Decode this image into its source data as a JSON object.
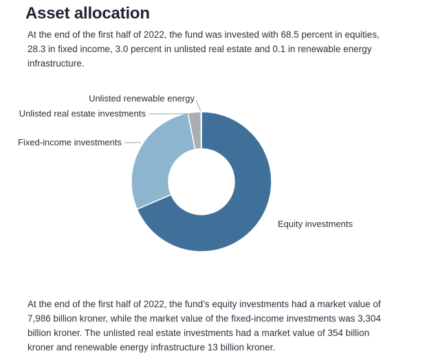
{
  "title": "Asset allocation",
  "intro": "At the end of the first half of 2022, the fund was invested with 68.5 percent in equities, 28.3 in fixed income, 3.0 percent in unlisted real estate and 0.1 in renewable energy infrastructure.",
  "outro": "At the end of the first half of 2022, the fund’s equity investments had a market value of 7,986 billion kroner, while the market value of the fixed-income investments was 3,304 billion kroner. The unlisted real estate investments had a market value of 354 billion kroner and renewable energy infrastructure 13 billion kroner.",
  "chart_data": {
    "type": "pie",
    "title": "",
    "donut": true,
    "legend": "none (direct labels)",
    "slices": [
      {
        "label": "Equity investments",
        "value": 68.5,
        "color": "#3f7099"
      },
      {
        "label": "Fixed-income investments",
        "value": 28.3,
        "color": "#8db5cf"
      },
      {
        "label": "Unlisted real estate investments",
        "value": 3.0,
        "color": "#a9aeb3"
      },
      {
        "label": "Unlisted renewable energy",
        "value": 0.1,
        "color": "#9ccb9a"
      }
    ]
  }
}
